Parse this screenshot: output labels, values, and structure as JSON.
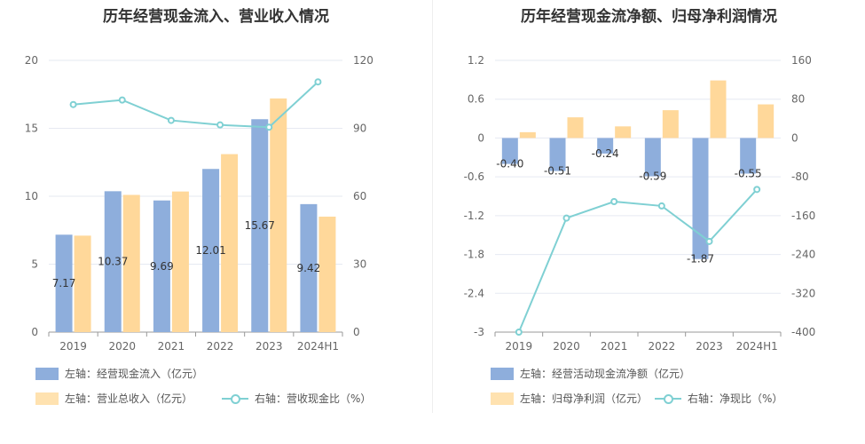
{
  "colors": {
    "blue": "#8eaedc",
    "orange": "#ffd89a",
    "line": "#7fd0d3",
    "grid": "#e6e9f2",
    "axis": "#999999"
  },
  "chart_data": [
    {
      "type": "bar",
      "title": "历年经营现金流入、营业收入情况",
      "categories": [
        "2019",
        "2020",
        "2021",
        "2022",
        "2023",
        "2024H1"
      ],
      "left_axis": {
        "ticks": [
          0,
          5,
          10,
          15,
          20
        ],
        "ylim": [
          0,
          20
        ]
      },
      "right_axis": {
        "ticks": [
          0,
          30,
          60,
          90,
          120
        ],
        "ylim": [
          0,
          120
        ]
      },
      "series": [
        {
          "name": "左轴：经营现金流入（亿元）",
          "type": "bar",
          "axis": "left",
          "values": [
            7.17,
            10.37,
            9.69,
            12.01,
            15.67,
            9.42
          ],
          "labels": [
            "7.17",
            "10.37",
            "9.69",
            "12.01",
            "15.67",
            "9.42"
          ]
        },
        {
          "name": "左轴：营业总收入（亿元）",
          "type": "bar",
          "axis": "left",
          "values": [
            7.1,
            10.1,
            10.35,
            13.1,
            17.2,
            8.5
          ]
        },
        {
          "name": "右轴：营收现金比（%）",
          "type": "line",
          "axis": "right",
          "values": [
            100.5,
            102.5,
            93.5,
            91.5,
            90.5,
            110.5
          ]
        }
      ]
    },
    {
      "type": "bar",
      "title": "历年经营现金流净额、归母净利润情况",
      "categories": [
        "2019",
        "2020",
        "2021",
        "2022",
        "2023",
        "2024H1"
      ],
      "left_axis": {
        "ticks": [
          1.2,
          0.6,
          0,
          -0.6,
          -1.2,
          -1.8,
          -2.4,
          -3
        ],
        "tick_labels": [
          "1.2",
          "0.6",
          "0",
          "-0.6",
          "-1.2",
          "-1.8",
          "-2.4",
          "-3"
        ],
        "ylim": [
          -3,
          1.2
        ]
      },
      "right_axis": {
        "ticks": [
          160,
          80,
          0,
          -80,
          -160,
          -240,
          -320,
          -400
        ],
        "ylim": [
          -400,
          160
        ]
      },
      "series": [
        {
          "name": "左轴：经营活动现金流净额（亿元）",
          "type": "bar",
          "axis": "left",
          "values": [
            -0.4,
            -0.51,
            -0.24,
            -0.59,
            -1.87,
            -0.55
          ],
          "labels": [
            "-0.40",
            "-0.51",
            "-0.24",
            "-0.59",
            "-1.87",
            "-0.55"
          ]
        },
        {
          "name": "左轴：归母净利润（亿元）",
          "type": "bar",
          "axis": "left",
          "values": [
            0.09,
            0.32,
            0.18,
            0.43,
            0.89,
            0.52
          ]
        },
        {
          "name": "右轴：净现比（%）",
          "type": "line",
          "axis": "right",
          "values": [
            -400,
            -165,
            -131,
            -140,
            -213,
            -106
          ]
        }
      ]
    }
  ]
}
